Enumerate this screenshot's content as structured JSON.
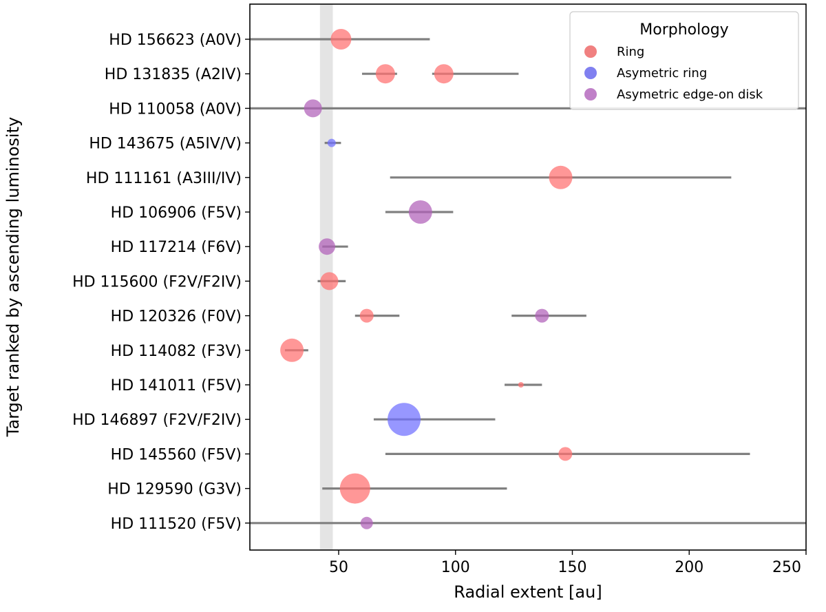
{
  "chart_data": {
    "type": "scatter",
    "title": "",
    "xlabel": "Radial extent [au]",
    "ylabel": "Target ranked by ascending luminosity",
    "xlim": [
      12,
      250
    ],
    "xticks": [
      50,
      100,
      150,
      200,
      250
    ],
    "band": [
      42,
      47.5
    ],
    "legend": {
      "title": "Morphology",
      "position": "top-right",
      "entries": [
        {
          "label": "Ring",
          "color": "#f08080"
        },
        {
          "label": "Asymetric ring",
          "color": "#8080f0"
        },
        {
          "label": "Asymetric edge-on disk",
          "color": "#c080c8"
        }
      ]
    },
    "colors": {
      "Ring": "#ff6f6f",
      "Asymetric ring": "#6f6fff",
      "Asymetric edge-on disk": "#b060b8",
      "errorbar": "#808080",
      "band": "#e4e4e4"
    },
    "targets": [
      "HD 156623 (A0V)",
      "HD 131835 (A2IV)",
      "HD 110058 (A0V)",
      "HD 143675 (A5IV/V)",
      "HD 111161 (A3III/IV)",
      "HD 106906 (F5V)",
      "HD 117214 (F6V)",
      "HD 115600 (F2V/F2IV)",
      "HD 120326 (F0V)",
      "HD 114082 (F3V)",
      "HD 141011 (F5V)",
      "HD 146897 (F2V/F2IV)",
      "HD 145560 (F5V)",
      "HD 129590 (G3V)",
      "HD 111520 (F5V)"
    ],
    "points": [
      {
        "target": "HD 156623 (A0V)",
        "x": 51,
        "xmin": 12,
        "xmax": 89,
        "morphology": "Ring",
        "size": 15
      },
      {
        "target": "HD 131835 (A2IV)",
        "x": 70,
        "xmin": 60,
        "xmax": 75,
        "morphology": "Ring",
        "size": 14
      },
      {
        "target": "HD 131835 (A2IV)",
        "x": 95,
        "xmin": 90,
        "xmax": 127,
        "morphology": "Ring",
        "size": 14
      },
      {
        "target": "HD 110058 (A0V)",
        "x": 39,
        "xmin": 12,
        "xmax": 250,
        "morphology": "Asymetric edge-on disk",
        "size": 13
      },
      {
        "target": "HD 143675 (A5IV/V)",
        "x": 47,
        "xmin": 44,
        "xmax": 51,
        "morphology": "Asymetric ring",
        "size": 6
      },
      {
        "target": "HD 111161 (A3III/IV)",
        "x": 145,
        "xmin": 72,
        "xmax": 218,
        "morphology": "Ring",
        "size": 17
      },
      {
        "target": "HD 106906 (F5V)",
        "x": 85,
        "xmin": 70,
        "xmax": 99,
        "morphology": "Asymetric edge-on disk",
        "size": 17
      },
      {
        "target": "HD 117214 (F6V)",
        "x": 45,
        "xmin": 43,
        "xmax": 54,
        "morphology": "Asymetric edge-on disk",
        "size": 12
      },
      {
        "target": "HD 115600 (F2V/F2IV)",
        "x": 46,
        "xmin": 41,
        "xmax": 53,
        "morphology": "Ring",
        "size": 13
      },
      {
        "target": "HD 120326 (F0V)",
        "x": 62,
        "xmin": 57,
        "xmax": 76,
        "morphology": "Ring",
        "size": 10
      },
      {
        "target": "HD 120326 (F0V)",
        "x": 137,
        "xmin": 124,
        "xmax": 156,
        "morphology": "Asymetric edge-on disk",
        "size": 10
      },
      {
        "target": "HD 114082 (F3V)",
        "x": 30,
        "xmin": 27,
        "xmax": 37,
        "morphology": "Ring",
        "size": 17
      },
      {
        "target": "HD 141011 (F5V)",
        "x": 128,
        "xmin": 121,
        "xmax": 137,
        "morphology": "Ring",
        "size": 4
      },
      {
        "target": "HD 146897 (F2V/F2IV)",
        "x": 78,
        "xmin": 65,
        "xmax": 117,
        "morphology": "Asymetric ring",
        "size": 24
      },
      {
        "target": "HD 145560 (F5V)",
        "x": 147,
        "xmin": 70,
        "xmax": 226,
        "morphology": "Ring",
        "size": 10
      },
      {
        "target": "HD 129590 (G3V)",
        "x": 57,
        "xmin": 43,
        "xmax": 122,
        "morphology": "Ring",
        "size": 22
      },
      {
        "target": "HD 111520 (F5V)",
        "x": 62,
        "xmin": 12,
        "xmax": 250,
        "morphology": "Asymetric edge-on disk",
        "size": 9
      }
    ]
  }
}
